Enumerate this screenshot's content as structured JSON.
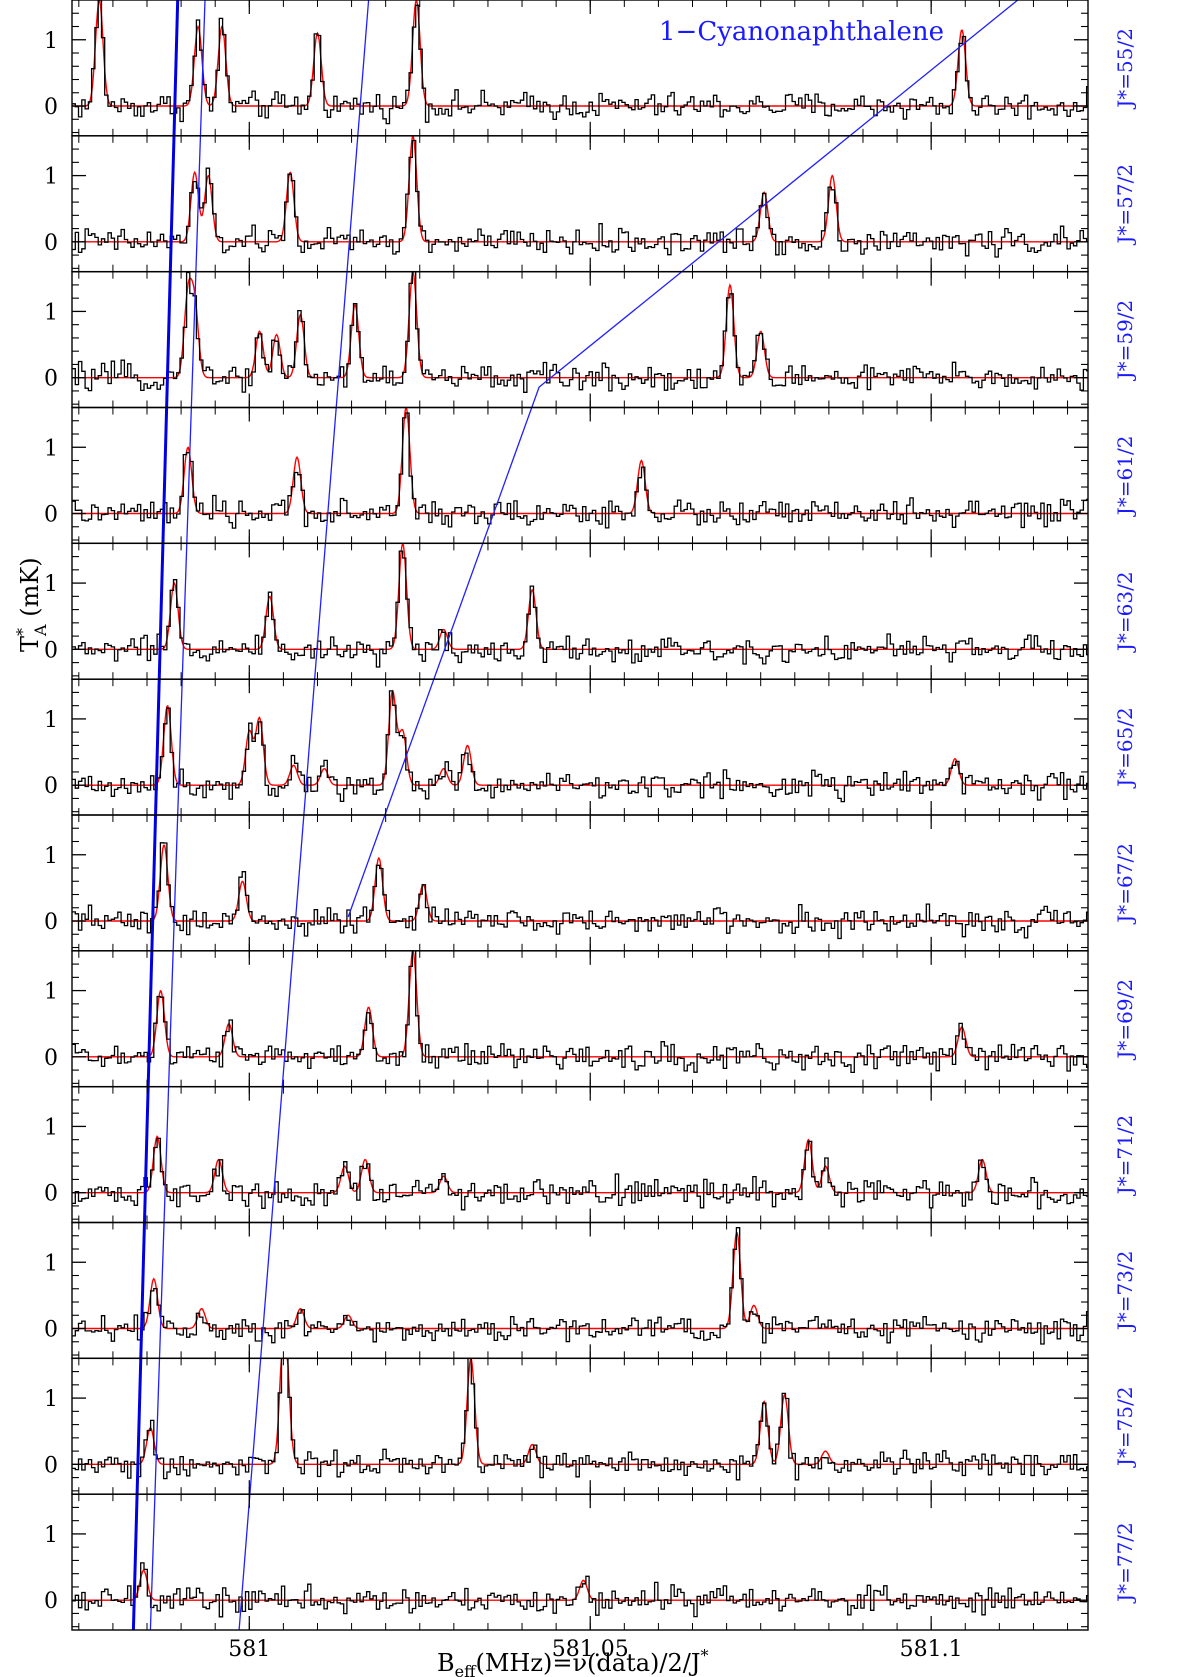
{
  "chart_data": {
    "type": "line",
    "title": "1−Cyanonaphthalene",
    "xlabel": {
      "main": "B",
      "sub": "eff",
      "rest": "(MHz)=ν(data)/2/J",
      "sup": "*"
    },
    "ylabel": {
      "main": "T",
      "sup": "*",
      "sub": "A",
      "rest": " (mK)"
    },
    "xlim": [
      580.974,
      581.123
    ],
    "ylim": [
      -0.45,
      1.6
    ],
    "x_ticks": [
      {
        "value": 581.0,
        "label": "581"
      },
      {
        "value": 581.05,
        "label": "581.05"
      },
      {
        "value": 581.1,
        "label": "581.1"
      }
    ],
    "y_ticks": [
      {
        "value": 0,
        "label": "0"
      },
      {
        "value": 1,
        "label": "1"
      }
    ],
    "panels": [
      {
        "label": "J*=55/2",
        "lines": [
          {
            "x": 580.978,
            "a": 1.6
          },
          {
            "x": 580.9925,
            "a": 1.2
          },
          {
            "x": 580.996,
            "a": 1.2
          },
          {
            "x": 581.01,
            "a": 1.1
          },
          {
            "x": 581.0245,
            "a": 1.6
          },
          {
            "x": 581.1045,
            "a": 1.15
          }
        ]
      },
      {
        "label": "J*=57/2",
        "lines": [
          {
            "x": 580.992,
            "a": 1.05
          },
          {
            "x": 580.994,
            "a": 1.0
          },
          {
            "x": 581.006,
            "a": 1.05
          },
          {
            "x": 581.024,
            "a": 1.6
          },
          {
            "x": 581.0755,
            "a": 0.75
          },
          {
            "x": 581.0855,
            "a": 1.0
          }
        ]
      },
      {
        "label": "J*=59/2",
        "lines": [
          {
            "x": 580.991,
            "a": 1.2
          },
          {
            "x": 580.992,
            "a": 1.05
          },
          {
            "x": 581.0015,
            "a": 0.7
          },
          {
            "x": 581.004,
            "a": 0.65
          },
          {
            "x": 581.0075,
            "a": 0.95
          },
          {
            "x": 581.0155,
            "a": 1.1
          },
          {
            "x": 581.024,
            "a": 1.6
          },
          {
            "x": 581.0705,
            "a": 1.4
          },
          {
            "x": 581.075,
            "a": 0.7
          }
        ]
      },
      {
        "label": "J*=61/2",
        "lines": [
          {
            "x": 580.991,
            "a": 1.0
          },
          {
            "x": 581.007,
            "a": 0.85
          },
          {
            "x": 581.023,
            "a": 1.6
          },
          {
            "x": 581.0575,
            "a": 0.8
          }
        ]
      },
      {
        "label": "J*=63/2",
        "lines": [
          {
            "x": 580.989,
            "a": 1.0
          },
          {
            "x": 581.003,
            "a": 0.8
          },
          {
            "x": 581.0225,
            "a": 1.6
          },
          {
            "x": 581.0285,
            "a": 0.3
          },
          {
            "x": 581.0415,
            "a": 0.9
          }
        ]
      },
      {
        "label": "J*=65/2",
        "lines": [
          {
            "x": 580.988,
            "a": 1.2
          },
          {
            "x": 581.0,
            "a": 0.8
          },
          {
            "x": 581.0015,
            "a": 1.0
          },
          {
            "x": 581.0065,
            "a": 0.3
          },
          {
            "x": 581.011,
            "a": 0.25
          },
          {
            "x": 581.021,
            "a": 1.4
          },
          {
            "x": 581.0225,
            "a": 0.8
          },
          {
            "x": 581.0285,
            "a": 0.25
          },
          {
            "x": 581.032,
            "a": 0.6
          },
          {
            "x": 581.1035,
            "a": 0.4
          }
        ]
      },
      {
        "label": "J*=67/2",
        "lines": [
          {
            "x": 580.9875,
            "a": 1.15
          },
          {
            "x": 580.999,
            "a": 0.6
          },
          {
            "x": 581.019,
            "a": 0.95
          },
          {
            "x": 581.0255,
            "a": 0.55
          }
        ]
      },
      {
        "label": "J*=69/2",
        "lines": [
          {
            "x": 580.987,
            "a": 1.0
          },
          {
            "x": 580.997,
            "a": 0.5
          },
          {
            "x": 581.0175,
            "a": 0.75
          },
          {
            "x": 581.024,
            "a": 1.6
          },
          {
            "x": 581.1045,
            "a": 0.45
          }
        ]
      },
      {
        "label": "J*=71/2",
        "lines": [
          {
            "x": 580.9865,
            "a": 0.85
          },
          {
            "x": 580.9955,
            "a": 0.5
          },
          {
            "x": 581.014,
            "a": 0.4
          },
          {
            "x": 581.017,
            "a": 0.5
          },
          {
            "x": 581.0285,
            "a": 0.25
          },
          {
            "x": 581.082,
            "a": 0.8
          },
          {
            "x": 581.0845,
            "a": 0.4
          },
          {
            "x": 581.1075,
            "a": 0.5
          }
        ]
      },
      {
        "label": "J*=73/2",
        "lines": [
          {
            "x": 580.986,
            "a": 0.75
          },
          {
            "x": 580.993,
            "a": 0.3
          },
          {
            "x": 581.0075,
            "a": 0.3
          },
          {
            "x": 581.0145,
            "a": 0.2
          },
          {
            "x": 581.0715,
            "a": 1.45
          },
          {
            "x": 581.074,
            "a": 0.35
          }
        ]
      },
      {
        "label": "J*=75/2",
        "lines": [
          {
            "x": 580.9855,
            "a": 0.55
          },
          {
            "x": 581.005,
            "a": 1.6
          },
          {
            "x": 581.0055,
            "a": 0.8
          },
          {
            "x": 581.0325,
            "a": 1.6
          },
          {
            "x": 581.0415,
            "a": 0.3
          },
          {
            "x": 581.0755,
            "a": 0.95
          },
          {
            "x": 581.0785,
            "a": 1.05
          },
          {
            "x": 581.0845,
            "a": 0.2
          }
        ]
      },
      {
        "label": "J*=77/2",
        "lines": [
          {
            "x": 580.9845,
            "a": 0.45
          },
          {
            "x": 581.049,
            "a": 0.3
          }
        ]
      }
    ],
    "series": [
      {
        "color": "#000000",
        "style": "histogram"
      },
      {
        "color": "#ff0000",
        "style": "line"
      }
    ],
    "overlay_lines": [
      {
        "color": "#0000e0",
        "points": [
          [
            580.9895,
            1.6
          ],
          [
            580.983,
            -0.45
          ]
        ],
        "thick": true
      },
      {
        "color": "#2020ff",
        "points": [
          [
            580.9935,
            1.6
          ],
          [
            580.9855,
            -0.45
          ]
        ],
        "thick": false
      },
      {
        "color": "#2020ff",
        "points": [
          [
            581.0175,
            1.6
          ],
          [
            580.9985,
            -0.45
          ]
        ],
        "thick": false
      },
      {
        "color": "#2020ff",
        "points": [
          [
            581.1127,
            1.6
          ],
          [
            581.0425,
            3.5
          ],
          [
            581.0145,
            7.4
          ]
        ],
        "thick": false
      }
    ],
    "colors": {
      "observed": "#000000",
      "model": "#ff0000",
      "labels": "#1a1aff"
    }
  }
}
